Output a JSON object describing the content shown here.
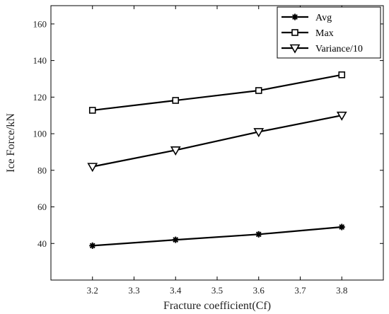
{
  "chart_data": {
    "type": "line",
    "xlabel": "Fracture coefficient(Cf)",
    "ylabel": "Ice  Force/kN",
    "xlim": [
      3.1,
      3.9
    ],
    "ylim": [
      20,
      170
    ],
    "x_ticks": [
      "3.2",
      "3.3",
      "3.4",
      "3.5",
      "3.6",
      "3.7",
      "3.8"
    ],
    "y_ticks": [
      "40",
      "60",
      "80",
      "100",
      "120",
      "140",
      "160"
    ],
    "x": [
      3.2,
      3.4,
      3.6,
      3.8
    ],
    "grid": false,
    "legend_position": "top-right",
    "series": [
      {
        "name": "Avg",
        "marker": "asterisk",
        "color": "#000000",
        "values": [
          38.8,
          42.0,
          45.0,
          49.0
        ]
      },
      {
        "name": "Max",
        "marker": "square",
        "color": "#000000",
        "values": [
          112.8,
          118.2,
          123.6,
          132.2
        ]
      },
      {
        "name": "Variance/10",
        "marker": "triangle-down",
        "color": "#000000",
        "values": [
          82.0,
          91.0,
          101.0,
          110.0
        ]
      }
    ]
  }
}
